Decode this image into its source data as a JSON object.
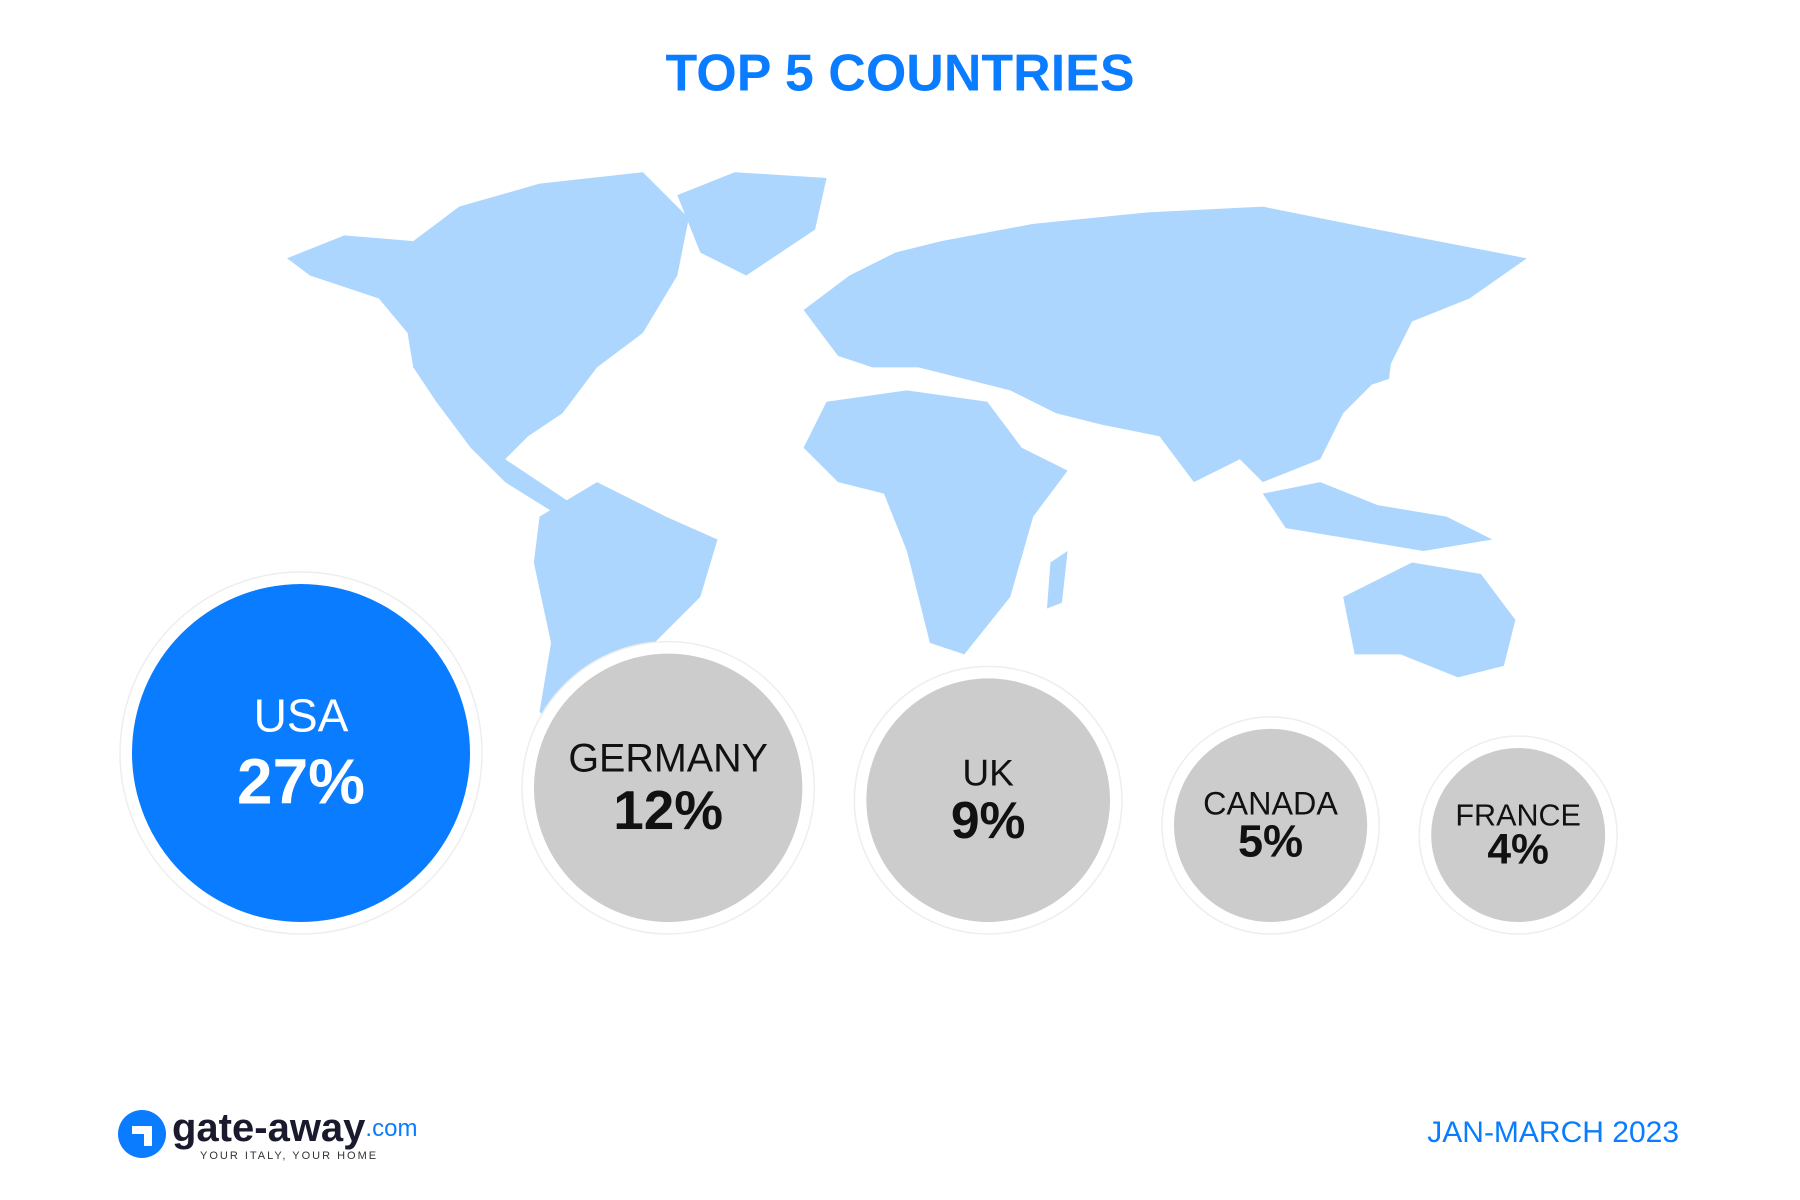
{
  "chart_data": {
    "type": "bubble",
    "title": "TOP 5 COUNTRIES",
    "categories": [
      "USA",
      "GERMANY",
      "UK",
      "CANADA",
      "FRANCE"
    ],
    "values": [
      27,
      12,
      9,
      5,
      4
    ],
    "value_labels": [
      "27%",
      "12%",
      "9%",
      "5%",
      "4%"
    ],
    "colors": [
      "#0a7cff",
      "#cccccc",
      "#cccccc",
      "#cccccc",
      "#cccccc"
    ]
  },
  "footer": {
    "brand": "gate-away",
    "domain": ".com",
    "tagline": "YOUR ITALY, YOUR HOME",
    "period": "JAN-MARCH 2023"
  }
}
